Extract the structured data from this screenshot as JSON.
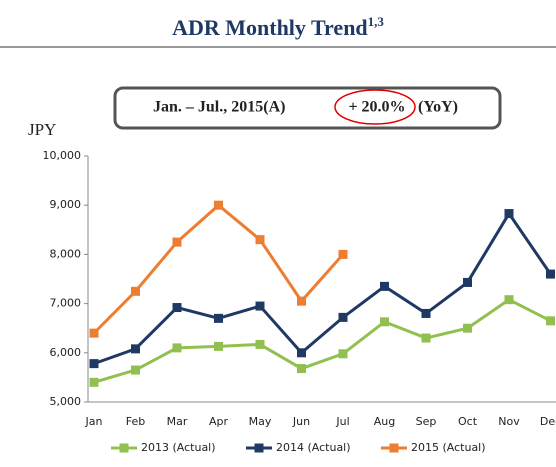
{
  "chart_data": {
    "type": "line",
    "title": "ADR Monthly Trend",
    "title_superscript": "1,3",
    "annotation": {
      "period": "Jan. – Jul., 2015(A)",
      "change": "+ 20.0%",
      "suffix": "(YoY)"
    },
    "y_label": "JPY",
    "categories": [
      "Jan",
      "Feb",
      "Mar",
      "Apr",
      "May",
      "Jun",
      "Jul",
      "Aug",
      "Sep",
      "Oct",
      "Nov",
      "Dec"
    ],
    "series": [
      {
        "name": "2013 (Actual)",
        "color": "#92c050",
        "values": [
          5400,
          5650,
          6100,
          6130,
          6170,
          5680,
          5980,
          6630,
          6300,
          6500,
          7080,
          6650
        ]
      },
      {
        "name": "2014 (Actual)",
        "color": "#1f3864",
        "values": [
          5780,
          6080,
          6920,
          6700,
          6950,
          6000,
          6720,
          7350,
          6800,
          7430,
          8830,
          7600
        ]
      },
      {
        "name": "2015 (Actual)",
        "color": "#ed7d31",
        "values": [
          6400,
          7250,
          8250,
          9000,
          8300,
          7050,
          8000,
          null,
          null,
          null,
          null,
          null
        ]
      }
    ],
    "ylim": [
      5000,
      10000
    ],
    "yticks": [
      {
        "value": 5000,
        "label": "5,000"
      },
      {
        "value": 6000,
        "label": "6,000"
      },
      {
        "value": 7000,
        "label": "7,000"
      },
      {
        "value": 8000,
        "label": "8,000"
      },
      {
        "value": 9000,
        "label": "9,000"
      },
      {
        "value": 10000,
        "label": "10,000"
      }
    ],
    "legend": "bottom"
  }
}
